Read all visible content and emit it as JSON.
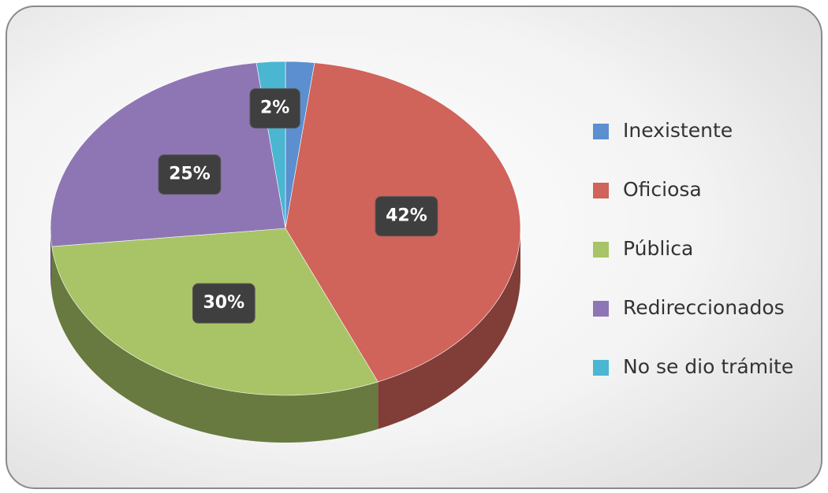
{
  "chart_data": {
    "type": "pie",
    "categories": [
      "Inexistente",
      "Oficiosa",
      "Pública",
      "Redireccionados",
      "No se dio trámite"
    ],
    "values": [
      2,
      42,
      30,
      25,
      2
    ],
    "value_labels": [
      null,
      "42%",
      "30%",
      "25%",
      "2%"
    ],
    "colors": [
      "#5b8fcf",
      "#d0635a",
      "#a8c466",
      "#8e76b4",
      "#4bb6d2"
    ],
    "legend": "right"
  }
}
